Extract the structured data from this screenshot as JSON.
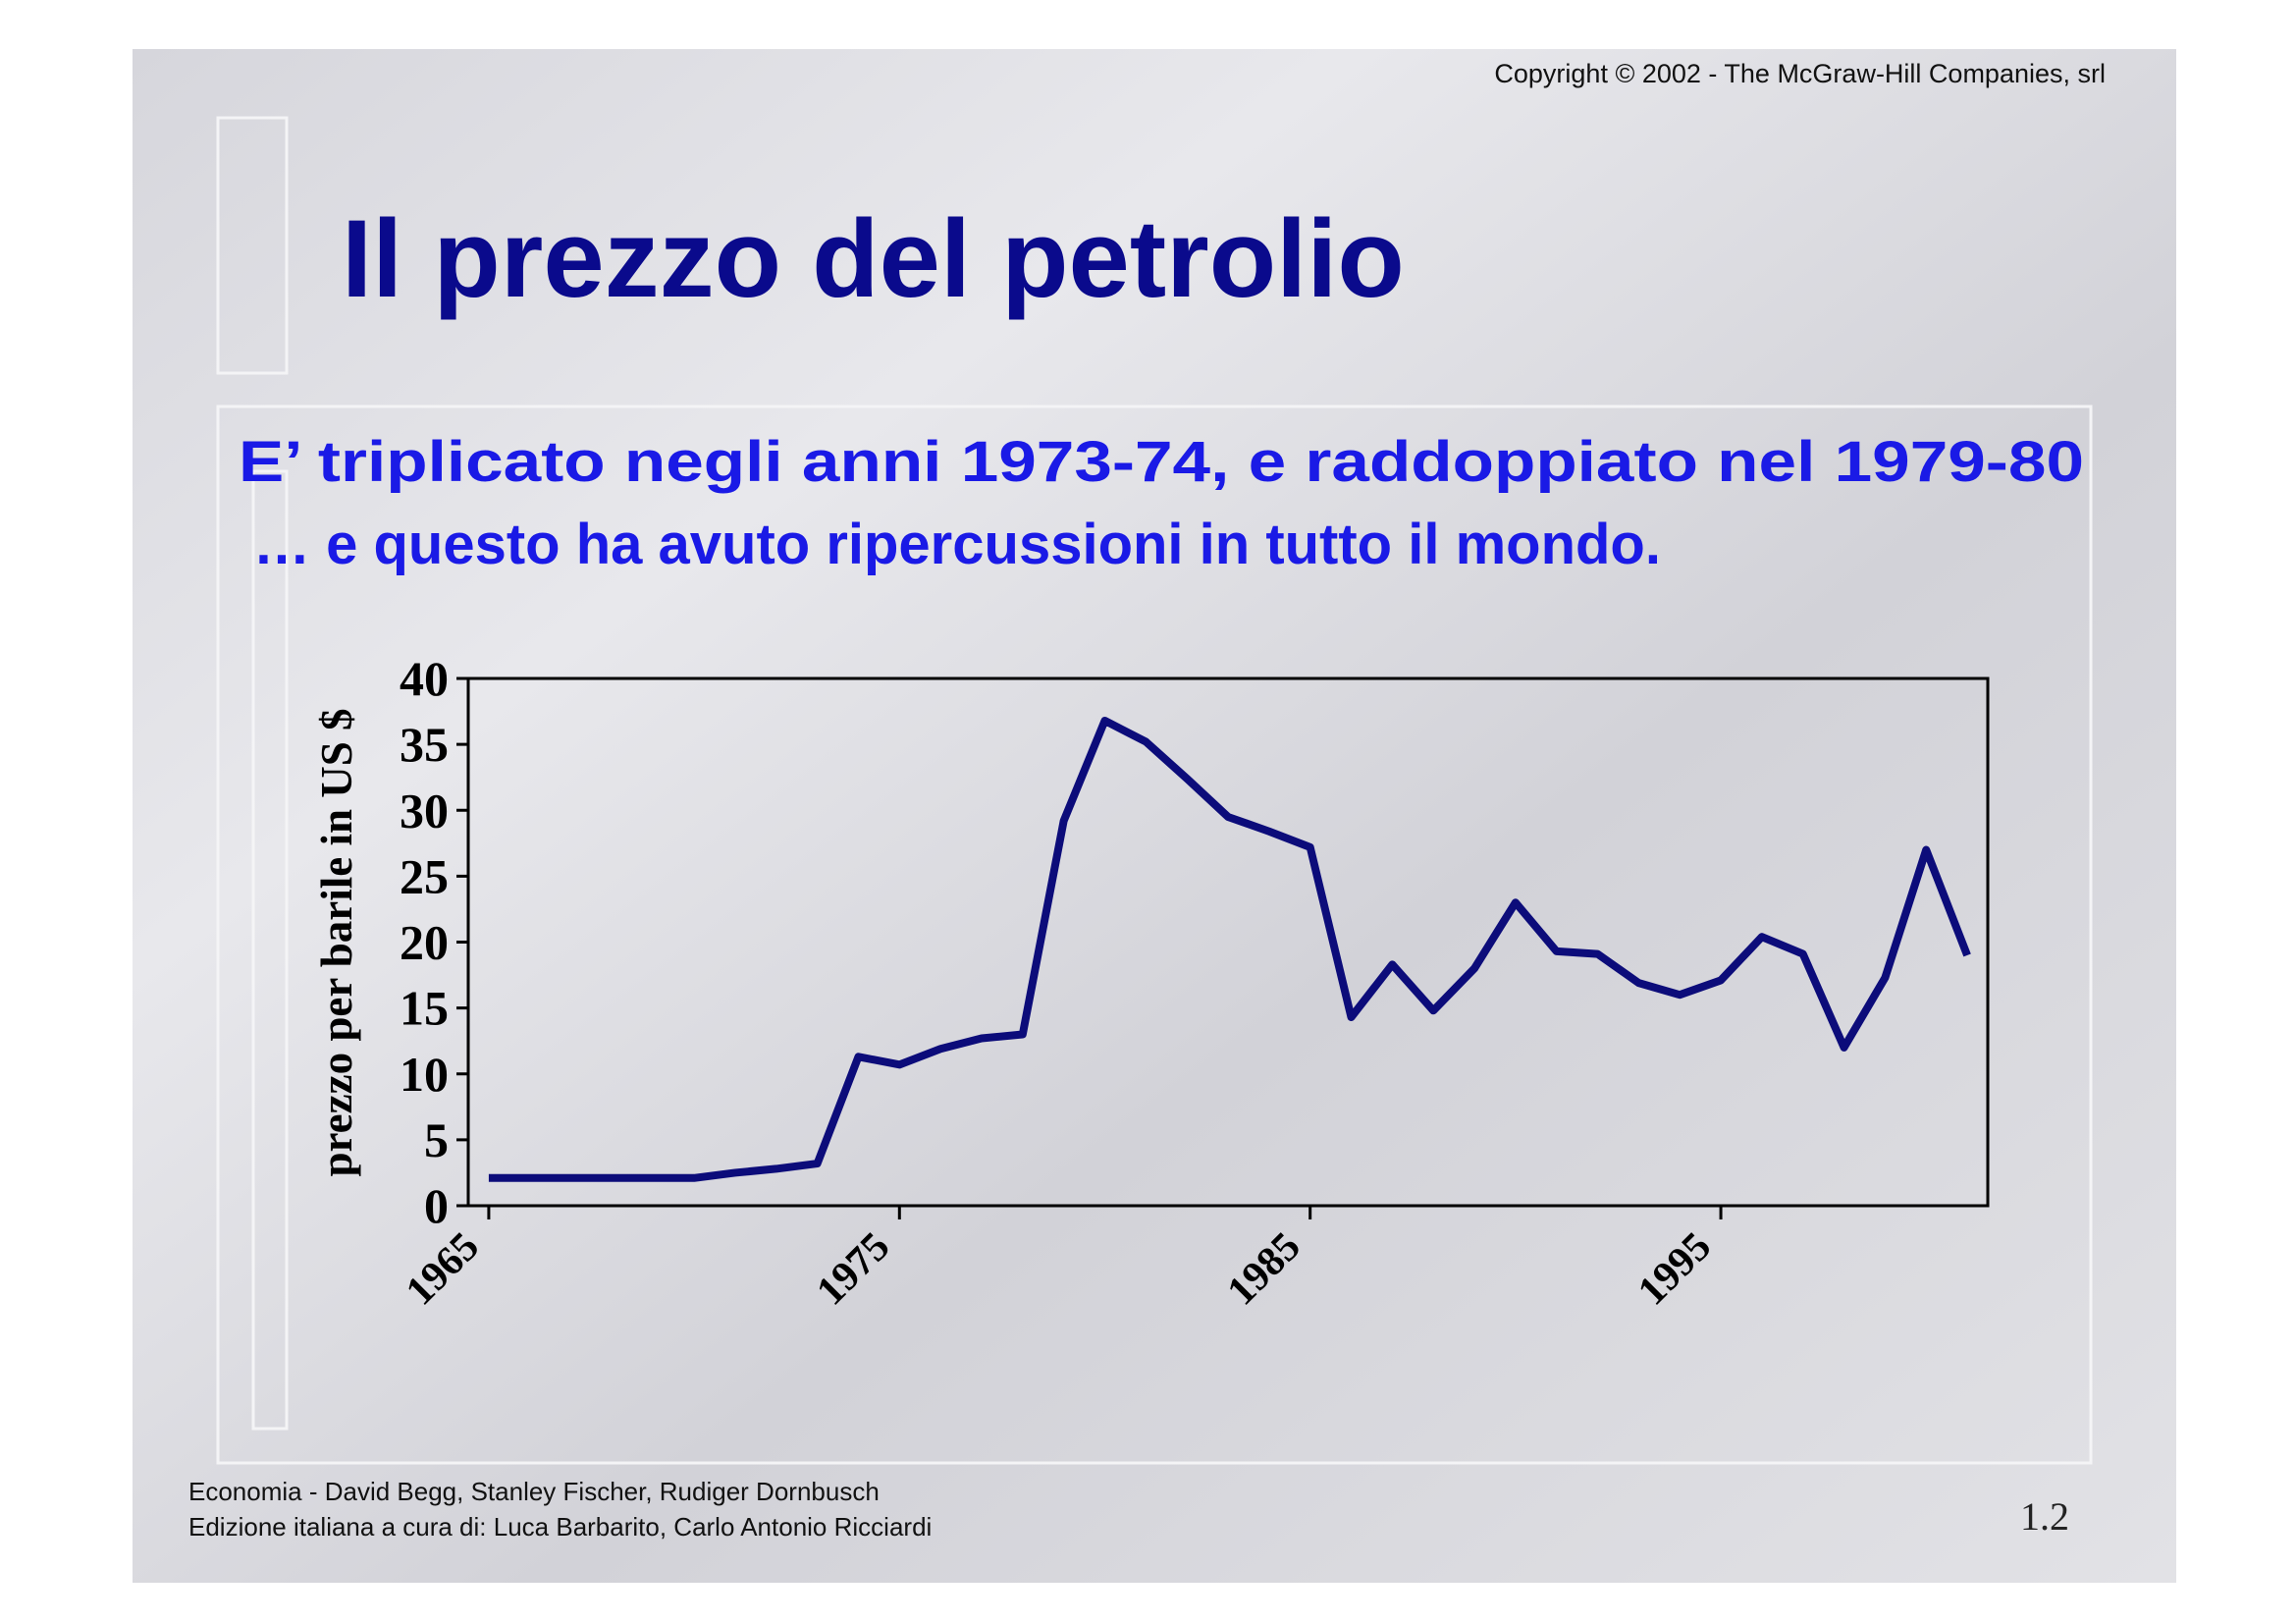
{
  "slide": {
    "copyright": "Copyright © 2002 - The McGraw-Hill Companies, srl",
    "title": "Il prezzo del petrolio",
    "subtitle_lines": [
      "E’ triplicato negli anni 1973-74, e raddoppiato nel 1979-80",
      "… e questo ha avuto ripercussioni in tutto il mondo."
    ],
    "footer_lines": [
      "Economia - David Begg, Stanley Fischer, Rudiger Dornbusch",
      "Edizione italiana a cura di: Luca Barbarito, Carlo Antonio Ricciardi"
    ],
    "page_number": "1.2"
  },
  "chart_data": {
    "type": "line",
    "ylabel": "prezzo per barile in US $",
    "x": [
      1965,
      1966,
      1967,
      1968,
      1969,
      1970,
      1971,
      1972,
      1973,
      1974,
      1975,
      1976,
      1977,
      1978,
      1979,
      1980,
      1981,
      1982,
      1983,
      1984,
      1985,
      1986,
      1987,
      1988,
      1989,
      1990,
      1991,
      1992,
      1993,
      1994,
      1995,
      1996,
      1997,
      1998,
      1999,
      2000,
      2001
    ],
    "values": [
      2.1,
      2.1,
      2.1,
      2.1,
      2.1,
      2.1,
      2.5,
      2.8,
      3.2,
      11.3,
      10.7,
      11.9,
      12.7,
      13.0,
      29.2,
      36.8,
      35.2,
      32.4,
      29.5,
      28.4,
      27.2,
      14.3,
      18.3,
      14.8,
      18.0,
      23.0,
      19.3,
      19.1,
      16.9,
      16.0,
      17.1,
      20.4,
      19.1,
      12.0,
      17.3,
      27.0,
      19.0
    ],
    "color": "#0c0c7a",
    "xlim": [
      1964.5,
      2001.5
    ],
    "xticks": [
      1965,
      1975,
      1985,
      1995
    ],
    "ylim": [
      0,
      40
    ],
    "yticks": [
      0,
      5,
      10,
      15,
      20,
      25,
      30,
      35,
      40
    ]
  }
}
